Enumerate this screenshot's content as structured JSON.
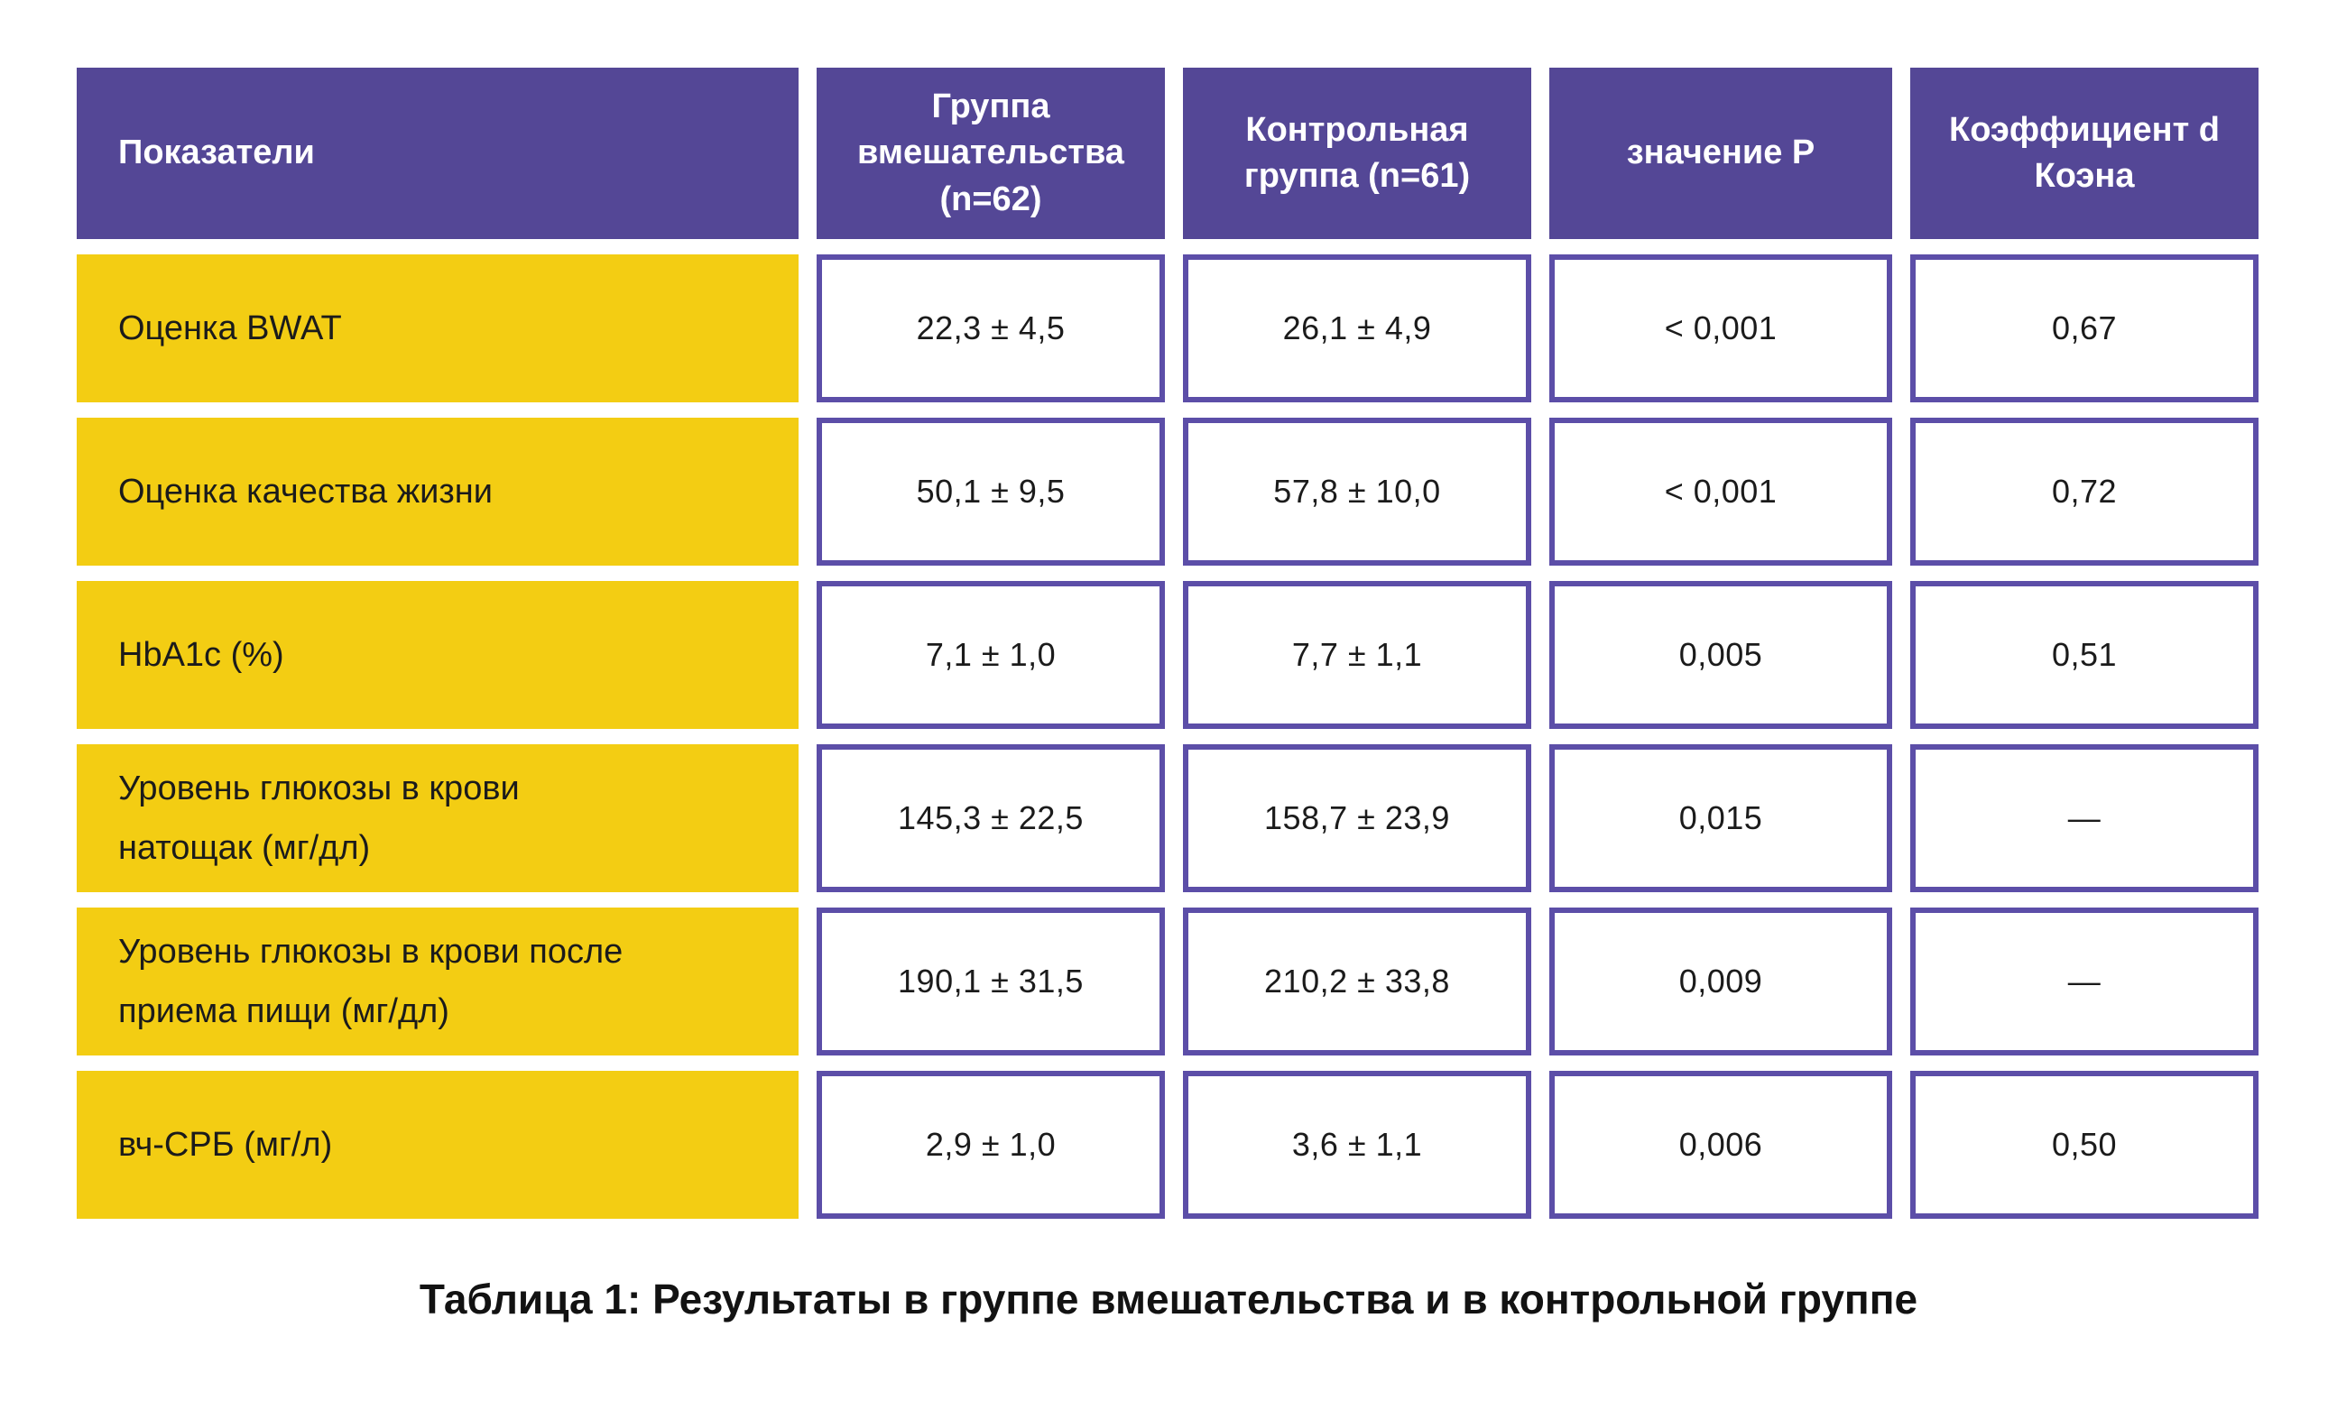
{
  "colors": {
    "header_bg": "#544796",
    "row_label_bg": "#f3cd13",
    "value_border": "#5c4ea8",
    "header_text": "#ffffff",
    "body_text": "#1b1b1b"
  },
  "chart_data": {
    "type": "table",
    "title": "Таблица 1: Результаты в группе вмешательства и в контрольной группе",
    "columns": [
      "Показатели",
      "Группа вмешательства (n=62)",
      "Контрольная группа (n=61)",
      "значение P",
      "Коэффициент d Коэна"
    ],
    "rows": [
      [
        "Оценка BWAT",
        "22,3 ± 4,5",
        "26,1 ± 4,9",
        "< 0,001",
        "0,67"
      ],
      [
        "Оценка качества жизни",
        "50,1 ± 9,5",
        "57,8 ± 10,0",
        "< 0,001",
        "0,72"
      ],
      [
        "HbA1c (%)",
        "7,1 ± 1,0",
        "7,7 ± 1,1",
        "0,005",
        "0,51"
      ],
      [
        "Уровень глюкозы в крови\nнатощак (мг/дл)",
        "145,3 ± 22,5",
        "158,7 ± 23,9",
        "0,015",
        "—"
      ],
      [
        "Уровень глюкозы в крови после\nприема пищи (мг/дл)",
        "190,1 ± 31,5",
        "210,2 ± 33,8",
        "0,009",
        "—"
      ],
      [
        "вч-СРБ (мг/л)",
        "2,9 ± 1,0",
        "3,6 ± 1,1",
        "0,006",
        "0,50"
      ]
    ]
  }
}
